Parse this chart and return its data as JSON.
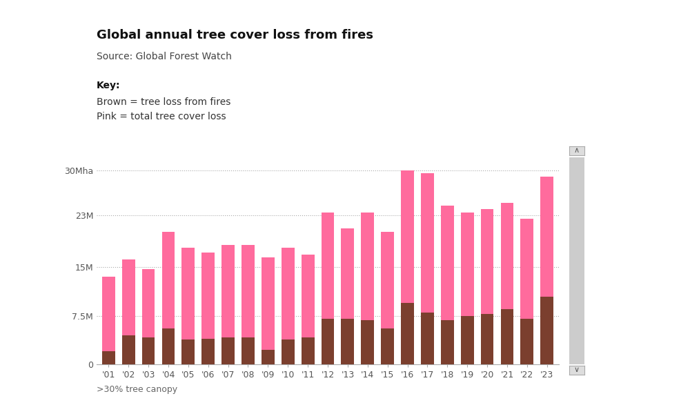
{
  "title": "Global annual tree cover loss from fires",
  "source": "Source: Global Forest Watch",
  "key_label": "Key:",
  "key_brown": "Brown = tree loss from fires",
  "key_pink": "Pink = total tree cover loss",
  "footnote": ">30% tree canopy",
  "years": [
    "'01",
    "'02",
    "'03",
    "'04",
    "'05",
    "'06",
    "'07",
    "'08",
    "'09",
    "'10",
    "'11",
    "'12",
    "'13",
    "'14",
    "'15",
    "'16",
    "'17",
    "'18",
    "'19",
    "'20",
    "'21",
    "'22",
    "'23"
  ],
  "total_loss": [
    13.5,
    16.2,
    14.7,
    20.5,
    18.0,
    17.3,
    18.5,
    18.5,
    16.5,
    18.0,
    17.0,
    23.5,
    21.0,
    23.5,
    20.5,
    30.0,
    29.5,
    24.5,
    23.5,
    24.0,
    25.0,
    22.5,
    29.0
  ],
  "fire_loss": [
    2.0,
    4.5,
    4.2,
    5.5,
    3.8,
    4.0,
    4.2,
    4.2,
    2.2,
    3.8,
    4.2,
    7.0,
    7.0,
    6.8,
    5.5,
    9.5,
    8.0,
    6.8,
    7.5,
    7.8,
    8.5,
    7.0,
    10.5
  ],
  "pink_color": "#FF6B9D",
  "brown_color": "#7B3F2E",
  "background_color": "#FFFFFF",
  "yticks": [
    0,
    7.5,
    15,
    23,
    30
  ],
  "ytick_labels": [
    "0",
    "7.5M",
    "15M",
    "23M",
    "30Mha"
  ],
  "ylim": [
    0,
    32
  ],
  "title_fontsize": 13,
  "source_fontsize": 10,
  "key_fontsize": 10,
  "tick_fontsize": 9
}
